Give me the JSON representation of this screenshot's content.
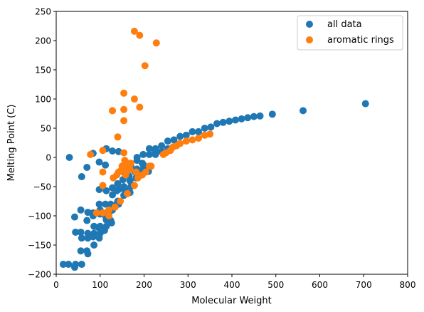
{
  "chart_data": {
    "type": "scatter",
    "title": "",
    "xlabel": "Molecular Weight",
    "ylabel": "Melting Point (C)",
    "xlim": [
      0,
      800
    ],
    "ylim": [
      -200,
      250
    ],
    "xticks": [
      0,
      100,
      200,
      300,
      400,
      500,
      600,
      700,
      800
    ],
    "yticks": [
      -200,
      -150,
      -100,
      -50,
      0,
      50,
      100,
      150,
      200,
      250
    ],
    "grid": false,
    "legend_position": "top-right",
    "series": [
      {
        "name": "all data",
        "color": "#1f77b4",
        "points": [
          [
            16,
            -183
          ],
          [
            28,
            -183
          ],
          [
            44,
            -183
          ],
          [
            58,
            -183
          ],
          [
            30,
            0
          ],
          [
            42,
            -102
          ],
          [
            44,
            -128
          ],
          [
            56,
            -128
          ],
          [
            56,
            -90
          ],
          [
            72,
            -94
          ],
          [
            58,
            -138
          ],
          [
            56,
            -160
          ],
          [
            70,
            -160
          ],
          [
            72,
            -165
          ],
          [
            72,
            -138
          ],
          [
            72,
            -130
          ],
          [
            86,
            -130
          ],
          [
            86,
            -150
          ],
          [
            86,
            -118
          ],
          [
            100,
            -130
          ],
          [
            114,
            -107
          ],
          [
            98,
            -138
          ],
          [
            100,
            -90
          ],
          [
            98,
            -80
          ],
          [
            70,
            -108
          ],
          [
            84,
            -100
          ],
          [
            84,
            -136
          ],
          [
            96,
            -120
          ],
          [
            110,
            -125
          ],
          [
            112,
            -100
          ],
          [
            114,
            -95
          ],
          [
            126,
            -112
          ],
          [
            128,
            -90
          ],
          [
            124,
            -80
          ],
          [
            138,
            -80
          ],
          [
            112,
            -80
          ],
          [
            140,
            -75
          ],
          [
            142,
            -55
          ],
          [
            154,
            -65
          ],
          [
            156,
            -55
          ],
          [
            168,
            -40
          ],
          [
            170,
            -50
          ],
          [
            168,
            -60
          ],
          [
            182,
            -35
          ],
          [
            184,
            -20
          ],
          [
            198,
            -20
          ],
          [
            196,
            -10
          ],
          [
            198,
            5
          ],
          [
            210,
            -20
          ],
          [
            212,
            5
          ],
          [
            226,
            10
          ],
          [
            226,
            5
          ],
          [
            226,
            15
          ],
          [
            240,
            20
          ],
          [
            240,
            10
          ],
          [
            254,
            28
          ],
          [
            254,
            15
          ],
          [
            268,
            30
          ],
          [
            282,
            36
          ],
          [
            296,
            38
          ],
          [
            310,
            44
          ],
          [
            324,
            44
          ],
          [
            338,
            50
          ],
          [
            352,
            52
          ],
          [
            366,
            58
          ],
          [
            380,
            60
          ],
          [
            394,
            62
          ],
          [
            408,
            64
          ],
          [
            422,
            66
          ],
          [
            436,
            68
          ],
          [
            450,
            70
          ],
          [
            464,
            71
          ],
          [
            492,
            74
          ],
          [
            562,
            80
          ],
          [
            704,
            92
          ],
          [
            58,
            -33
          ],
          [
            70,
            -17
          ],
          [
            84,
            7
          ],
          [
            98,
            -8
          ],
          [
            112,
            -13
          ],
          [
            114,
            15
          ],
          [
            128,
            11
          ],
          [
            142,
            10
          ],
          [
            156,
            -12
          ],
          [
            170,
            -15
          ],
          [
            184,
            -5
          ],
          [
            184,
            0
          ],
          [
            198,
            -12
          ],
          [
            212,
            15
          ],
          [
            98,
            -55
          ],
          [
            114,
            -57
          ],
          [
            128,
            -52
          ],
          [
            140,
            -45
          ],
          [
            154,
            -50
          ],
          [
            156,
            -27
          ],
          [
            170,
            -20
          ],
          [
            182,
            -25
          ],
          [
            196,
            -25
          ],
          [
            210,
            -24
          ],
          [
            84,
            -95
          ],
          [
            100,
            -97
          ],
          [
            124,
            -108
          ],
          [
            142,
            -80
          ],
          [
            126,
            -83
          ],
          [
            138,
            -57
          ],
          [
            152,
            -38
          ],
          [
            166,
            -32
          ],
          [
            180,
            -25
          ],
          [
            42,
            -188
          ],
          [
            100,
            -118
          ],
          [
            114,
            -118
          ],
          [
            120,
            -95
          ],
          [
            128,
            -64
          ]
        ]
      },
      {
        "name": "aromatic rings",
        "color": "#ff7f0e",
        "points": [
          [
            78,
            5
          ],
          [
            92,
            -95
          ],
          [
            106,
            -95
          ],
          [
            106,
            -25
          ],
          [
            106,
            -48
          ],
          [
            106,
            12
          ],
          [
            120,
            -100
          ],
          [
            120,
            -90
          ],
          [
            128,
            80
          ],
          [
            128,
            80
          ],
          [
            130,
            -35
          ],
          [
            134,
            -85
          ],
          [
            138,
            -30
          ],
          [
            140,
            35
          ],
          [
            142,
            -25
          ],
          [
            146,
            -75
          ],
          [
            148,
            -22
          ],
          [
            150,
            -15
          ],
          [
            154,
            8
          ],
          [
            154,
            63
          ],
          [
            154,
            82
          ],
          [
            154,
            110
          ],
          [
            156,
            -15
          ],
          [
            156,
            -5
          ],
          [
            158,
            -30
          ],
          [
            160,
            -25
          ],
          [
            162,
            -62
          ],
          [
            166,
            -10
          ],
          [
            168,
            -20
          ],
          [
            170,
            -10
          ],
          [
            178,
            -48
          ],
          [
            178,
            100
          ],
          [
            178,
            216
          ],
          [
            182,
            -25
          ],
          [
            186,
            -35
          ],
          [
            190,
            86
          ],
          [
            190,
            209
          ],
          [
            196,
            -30
          ],
          [
            202,
            157
          ],
          [
            204,
            -25
          ],
          [
            212,
            -15
          ],
          [
            216,
            -15
          ],
          [
            228,
            196
          ],
          [
            244,
            5
          ],
          [
            250,
            8
          ],
          [
            260,
            12
          ],
          [
            266,
            18
          ],
          [
            274,
            20
          ],
          [
            282,
            24
          ],
          [
            296,
            28
          ],
          [
            310,
            30
          ],
          [
            324,
            33
          ],
          [
            338,
            38
          ],
          [
            350,
            40
          ]
        ]
      }
    ]
  }
}
